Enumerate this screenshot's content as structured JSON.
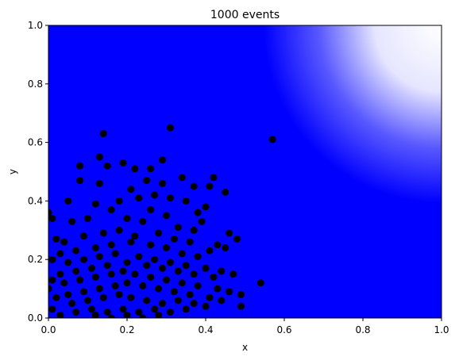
{
  "chart_data": {
    "type": "scatter",
    "title": "1000 events",
    "xlabel": "x",
    "ylabel": "y",
    "xlim": [
      0,
      1
    ],
    "ylim": [
      0,
      1
    ],
    "xticks": [
      "0.0",
      "0.2",
      "0.4",
      "0.6",
      "0.8",
      "1.0"
    ],
    "yticks": [
      "0.0",
      "0.2",
      "0.4",
      "0.6",
      "0.8",
      "1.0"
    ],
    "grid": false,
    "background": {
      "type": "heatmap",
      "colormap": "blue-to-white",
      "description": "solid blue over most of the square, fading to white toward the upper-right corner (x,y near 1)"
    },
    "colors": {
      "background_fill": "#0000ff",
      "fade_to": "#ffffff",
      "marker": "#000000"
    },
    "series": [
      {
        "marker_color": "#000000",
        "points": [
          [
            0.31,
            0.65
          ],
          [
            0.14,
            0.63
          ],
          [
            0.57,
            0.61
          ],
          [
            0.13,
            0.55
          ],
          [
            0.29,
            0.54
          ],
          [
            0.08,
            0.52
          ],
          [
            0.19,
            0.53
          ],
          [
            0.22,
            0.51
          ],
          [
            0.26,
            0.51
          ],
          [
            0.15,
            0.52
          ],
          [
            0.08,
            0.47
          ],
          [
            0.34,
            0.48
          ],
          [
            0.42,
            0.48
          ],
          [
            0.25,
            0.47
          ],
          [
            0.13,
            0.46
          ],
          [
            0.37,
            0.45
          ],
          [
            0.41,
            0.45
          ],
          [
            0.45,
            0.43
          ],
          [
            0.21,
            0.44
          ],
          [
            0.29,
            0.46
          ],
          [
            0.27,
            0.42
          ],
          [
            0.31,
            0.41
          ],
          [
            0.05,
            0.4
          ],
          [
            0.12,
            0.39
          ],
          [
            0.18,
            0.4
          ],
          [
            0.23,
            0.41
          ],
          [
            0.35,
            0.4
          ],
          [
            0.4,
            0.38
          ],
          [
            0.38,
            0.36
          ],
          [
            0.3,
            0.35
          ],
          [
            0.26,
            0.37
          ],
          [
            0.16,
            0.37
          ],
          [
            0.1,
            0.34
          ],
          [
            0.0,
            0.36
          ],
          [
            0.01,
            0.34
          ],
          [
            0.06,
            0.33
          ],
          [
            0.2,
            0.34
          ],
          [
            0.24,
            0.33
          ],
          [
            0.33,
            0.31
          ],
          [
            0.37,
            0.3
          ],
          [
            0.39,
            0.33
          ],
          [
            0.46,
            0.29
          ],
          [
            0.48,
            0.27
          ],
          [
            0.43,
            0.25
          ],
          [
            0.45,
            0.24
          ],
          [
            0.02,
            0.27
          ],
          [
            0.04,
            0.26
          ],
          [
            0.09,
            0.28
          ],
          [
            0.14,
            0.29
          ],
          [
            0.18,
            0.3
          ],
          [
            0.22,
            0.28
          ],
          [
            0.28,
            0.29
          ],
          [
            0.32,
            0.27
          ],
          [
            0.36,
            0.26
          ],
          [
            0.41,
            0.23
          ],
          [
            0.38,
            0.21
          ],
          [
            0.34,
            0.22
          ],
          [
            0.3,
            0.24
          ],
          [
            0.26,
            0.25
          ],
          [
            0.21,
            0.26
          ],
          [
            0.16,
            0.25
          ],
          [
            0.12,
            0.24
          ],
          [
            0.07,
            0.23
          ],
          [
            0.03,
            0.22
          ],
          [
            0.01,
            0.2
          ],
          [
            0.05,
            0.19
          ],
          [
            0.09,
            0.2
          ],
          [
            0.13,
            0.21
          ],
          [
            0.17,
            0.22
          ],
          [
            0.23,
            0.21
          ],
          [
            0.27,
            0.2
          ],
          [
            0.31,
            0.19
          ],
          [
            0.35,
            0.18
          ],
          [
            0.4,
            0.17
          ],
          [
            0.44,
            0.16
          ],
          [
            0.47,
            0.15
          ],
          [
            0.42,
            0.14
          ],
          [
            0.37,
            0.15
          ],
          [
            0.33,
            0.16
          ],
          [
            0.29,
            0.17
          ],
          [
            0.25,
            0.18
          ],
          [
            0.2,
            0.19
          ],
          [
            0.15,
            0.18
          ],
          [
            0.11,
            0.17
          ],
          [
            0.07,
            0.16
          ],
          [
            0.03,
            0.15
          ],
          [
            0.01,
            0.13
          ],
          [
            0.04,
            0.12
          ],
          [
            0.08,
            0.13
          ],
          [
            0.12,
            0.14
          ],
          [
            0.16,
            0.15
          ],
          [
            0.19,
            0.16
          ],
          [
            0.22,
            0.15
          ],
          [
            0.26,
            0.14
          ],
          [
            0.3,
            0.13
          ],
          [
            0.34,
            0.12
          ],
          [
            0.38,
            0.11
          ],
          [
            0.43,
            0.1
          ],
          [
            0.46,
            0.09
          ],
          [
            0.49,
            0.08
          ],
          [
            0.54,
            0.12
          ],
          [
            0.41,
            0.07
          ],
          [
            0.36,
            0.08
          ],
          [
            0.32,
            0.09
          ],
          [
            0.28,
            0.1
          ],
          [
            0.24,
            0.11
          ],
          [
            0.2,
            0.12
          ],
          [
            0.17,
            0.11
          ],
          [
            0.13,
            0.1
          ],
          [
            0.09,
            0.09
          ],
          [
            0.05,
            0.08
          ],
          [
            0.02,
            0.07
          ],
          [
            0.0,
            0.1
          ],
          [
            0.06,
            0.05
          ],
          [
            0.1,
            0.06
          ],
          [
            0.14,
            0.07
          ],
          [
            0.18,
            0.08
          ],
          [
            0.21,
            0.07
          ],
          [
            0.25,
            0.06
          ],
          [
            0.29,
            0.05
          ],
          [
            0.33,
            0.06
          ],
          [
            0.37,
            0.05
          ],
          [
            0.4,
            0.04
          ],
          [
            0.44,
            0.06
          ],
          [
            0.49,
            0.04
          ],
          [
            0.35,
            0.03
          ],
          [
            0.31,
            0.02
          ],
          [
            0.27,
            0.03
          ],
          [
            0.23,
            0.02
          ],
          [
            0.19,
            0.03
          ],
          [
            0.15,
            0.02
          ],
          [
            0.11,
            0.03
          ],
          [
            0.07,
            0.02
          ],
          [
            0.03,
            0.01
          ],
          [
            0.01,
            0.03
          ],
          [
            0.2,
            0.01
          ],
          [
            0.24,
            0.0
          ],
          [
            0.28,
            0.01
          ],
          [
            0.16,
            0.0
          ],
          [
            0.12,
            0.01
          ]
        ]
      }
    ]
  }
}
